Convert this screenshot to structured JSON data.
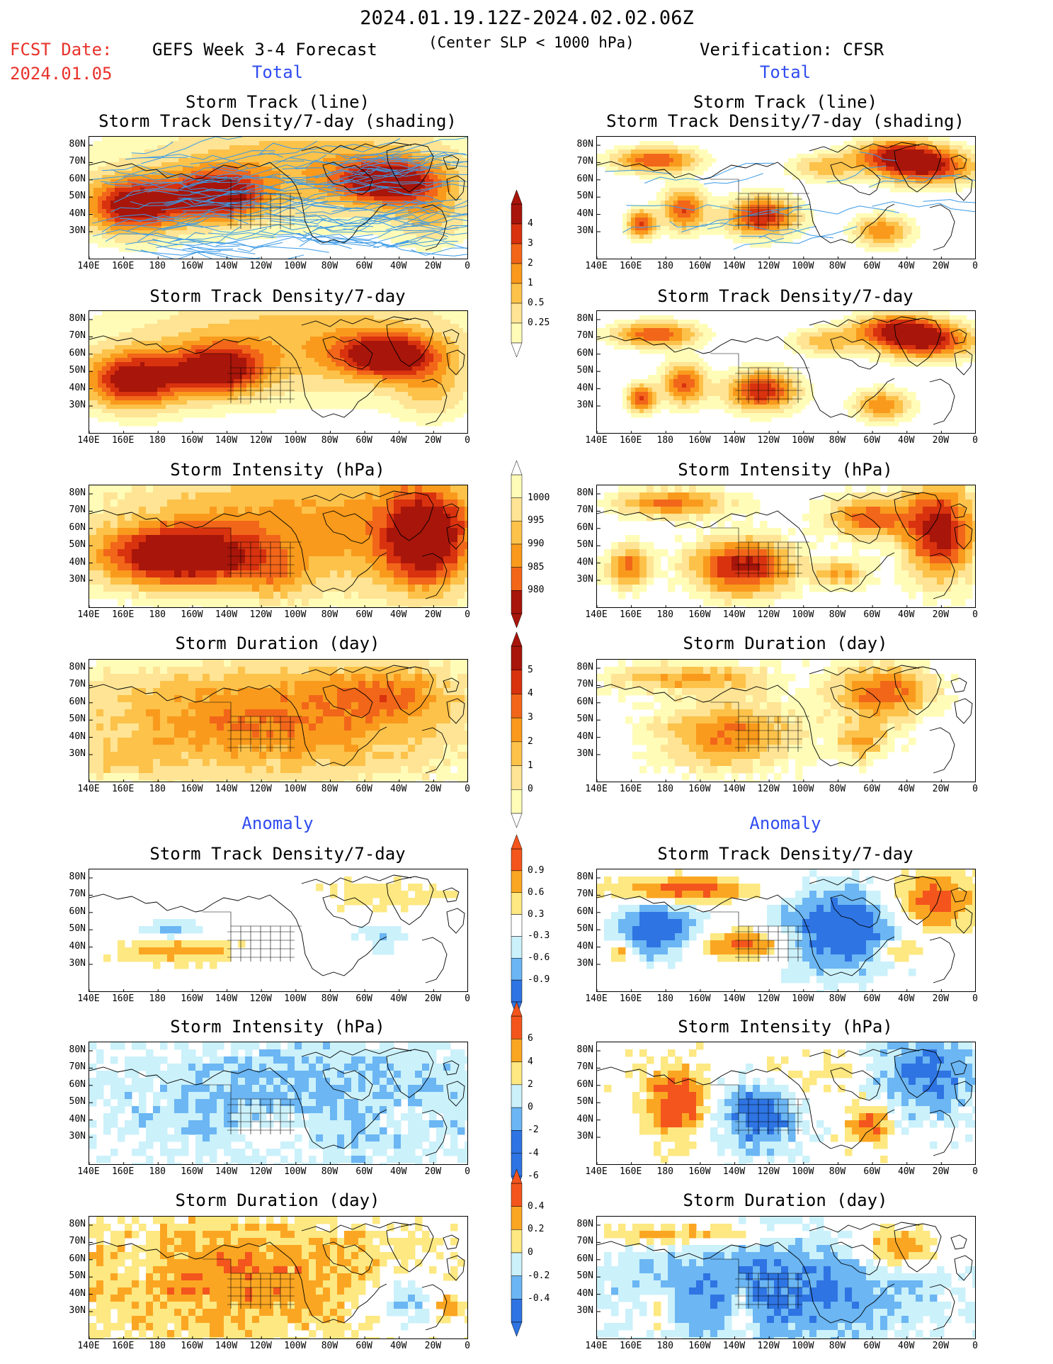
{
  "header": {
    "date_range": "2024.01.19.12Z-2024.02.02.06Z",
    "fcst_label": "FCST Date:",
    "fcst_date": "2024.01.05",
    "left_title": "GEFS Week 3-4 Forecast",
    "center_note": "(Center SLP < 1000 hPa)",
    "right_title": "Verification: CFSR"
  },
  "sections": {
    "total": "Total",
    "anomaly": "Anomaly"
  },
  "panel_titles": {
    "track_line": "Storm Track (line)",
    "track_shading": "Storm Track Density/7-day (shading)",
    "density": "Storm Track Density/7-day",
    "intensity": "Storm Intensity (hPa)",
    "duration": "Storm Duration (day)"
  },
  "axes": {
    "x_ticks": [
      "140E",
      "160E",
      "180",
      "160W",
      "140W",
      "120W",
      "100W",
      "80W",
      "60W",
      "40W",
      "20W",
      "0"
    ],
    "y_ticks": [
      "80N",
      "70N",
      "60N",
      "50N",
      "40N",
      "30N"
    ]
  },
  "colorbars": {
    "density_total": [
      "4",
      "3",
      "2",
      "1",
      "0.5",
      "0.25"
    ],
    "intensity_total": [
      "1000",
      "995",
      "990",
      "985",
      "980"
    ],
    "duration_total": [
      "5",
      "4",
      "3",
      "2",
      "1",
      "0"
    ],
    "density_anom": [
      "0.9",
      "0.6",
      "0.3",
      "-0.3",
      "-0.6",
      "-0.9"
    ],
    "intensity_anom": [
      "6",
      "4",
      "2",
      "0",
      "-2",
      "-4",
      "-6"
    ],
    "duration_anom": [
      "0.4",
      "0.2",
      "0",
      "-0.2",
      "-0.4"
    ]
  },
  "colors": {
    "warm": [
      "#fffcb8",
      "#fee494",
      "#fdc24a",
      "#f99a1c",
      "#f2661a",
      "#d8320f",
      "#a8150a"
    ],
    "anom_pos": [
      "#fde882",
      "#fba622",
      "#f3551d"
    ],
    "anom_neg": [
      "#cbf1fb",
      "#6bb6f3",
      "#2e74e3"
    ],
    "track_line": "#3b9ae6"
  }
}
